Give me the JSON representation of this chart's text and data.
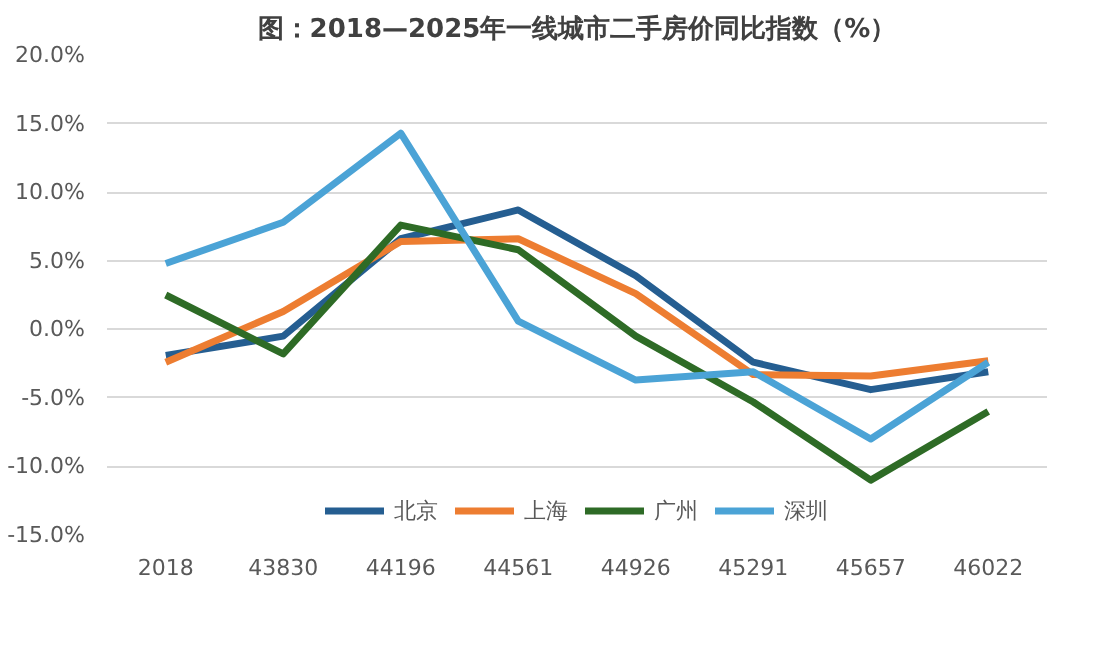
{
  "chart_data": {
    "type": "line",
    "title": "图：2018—2025年一线城市二手房价同比指数（%）",
    "categories": [
      "2018",
      "43830",
      "44196",
      "44561",
      "44926",
      "45291",
      "45657",
      "46022"
    ],
    "series": [
      {
        "name": "北京",
        "color": "#255e91",
        "values": [
          -1.9,
          -0.5,
          6.6,
          8.7,
          3.9,
          -2.4,
          -4.4,
          -3.1
        ]
      },
      {
        "name": "上海",
        "color": "#ed7d31",
        "values": [
          -2.4,
          1.3,
          6.4,
          6.6,
          2.6,
          -3.3,
          -3.4,
          -2.3
        ]
      },
      {
        "name": "广州",
        "color": "#2e6b26",
        "values": [
          2.5,
          -1.8,
          7.6,
          5.8,
          -0.5,
          -5.3,
          -11.0,
          -6.0
        ]
      },
      {
        "name": "深圳",
        "color": "#4ba3d6",
        "values": [
          4.8,
          7.8,
          14.3,
          0.6,
          -3.7,
          -3.1,
          -8.0,
          -2.4
        ]
      }
    ],
    "ylim": [
      -15,
      20
    ],
    "yticks": [
      {
        "value": -15,
        "label": "-15.0%"
      },
      {
        "value": -10,
        "label": "-10.0%"
      },
      {
        "value": -5,
        "label": "-5.0%"
      },
      {
        "value": 0,
        "label": "0.0%"
      },
      {
        "value": 5,
        "label": "5.0%"
      },
      {
        "value": 10,
        "label": "10.0%"
      },
      {
        "value": 15,
        "label": "15.0%"
      },
      {
        "value": 20,
        "label": "20.0%"
      }
    ],
    "grid": "y",
    "legend": "bottom",
    "marker": "none",
    "line_style": "solid"
  }
}
